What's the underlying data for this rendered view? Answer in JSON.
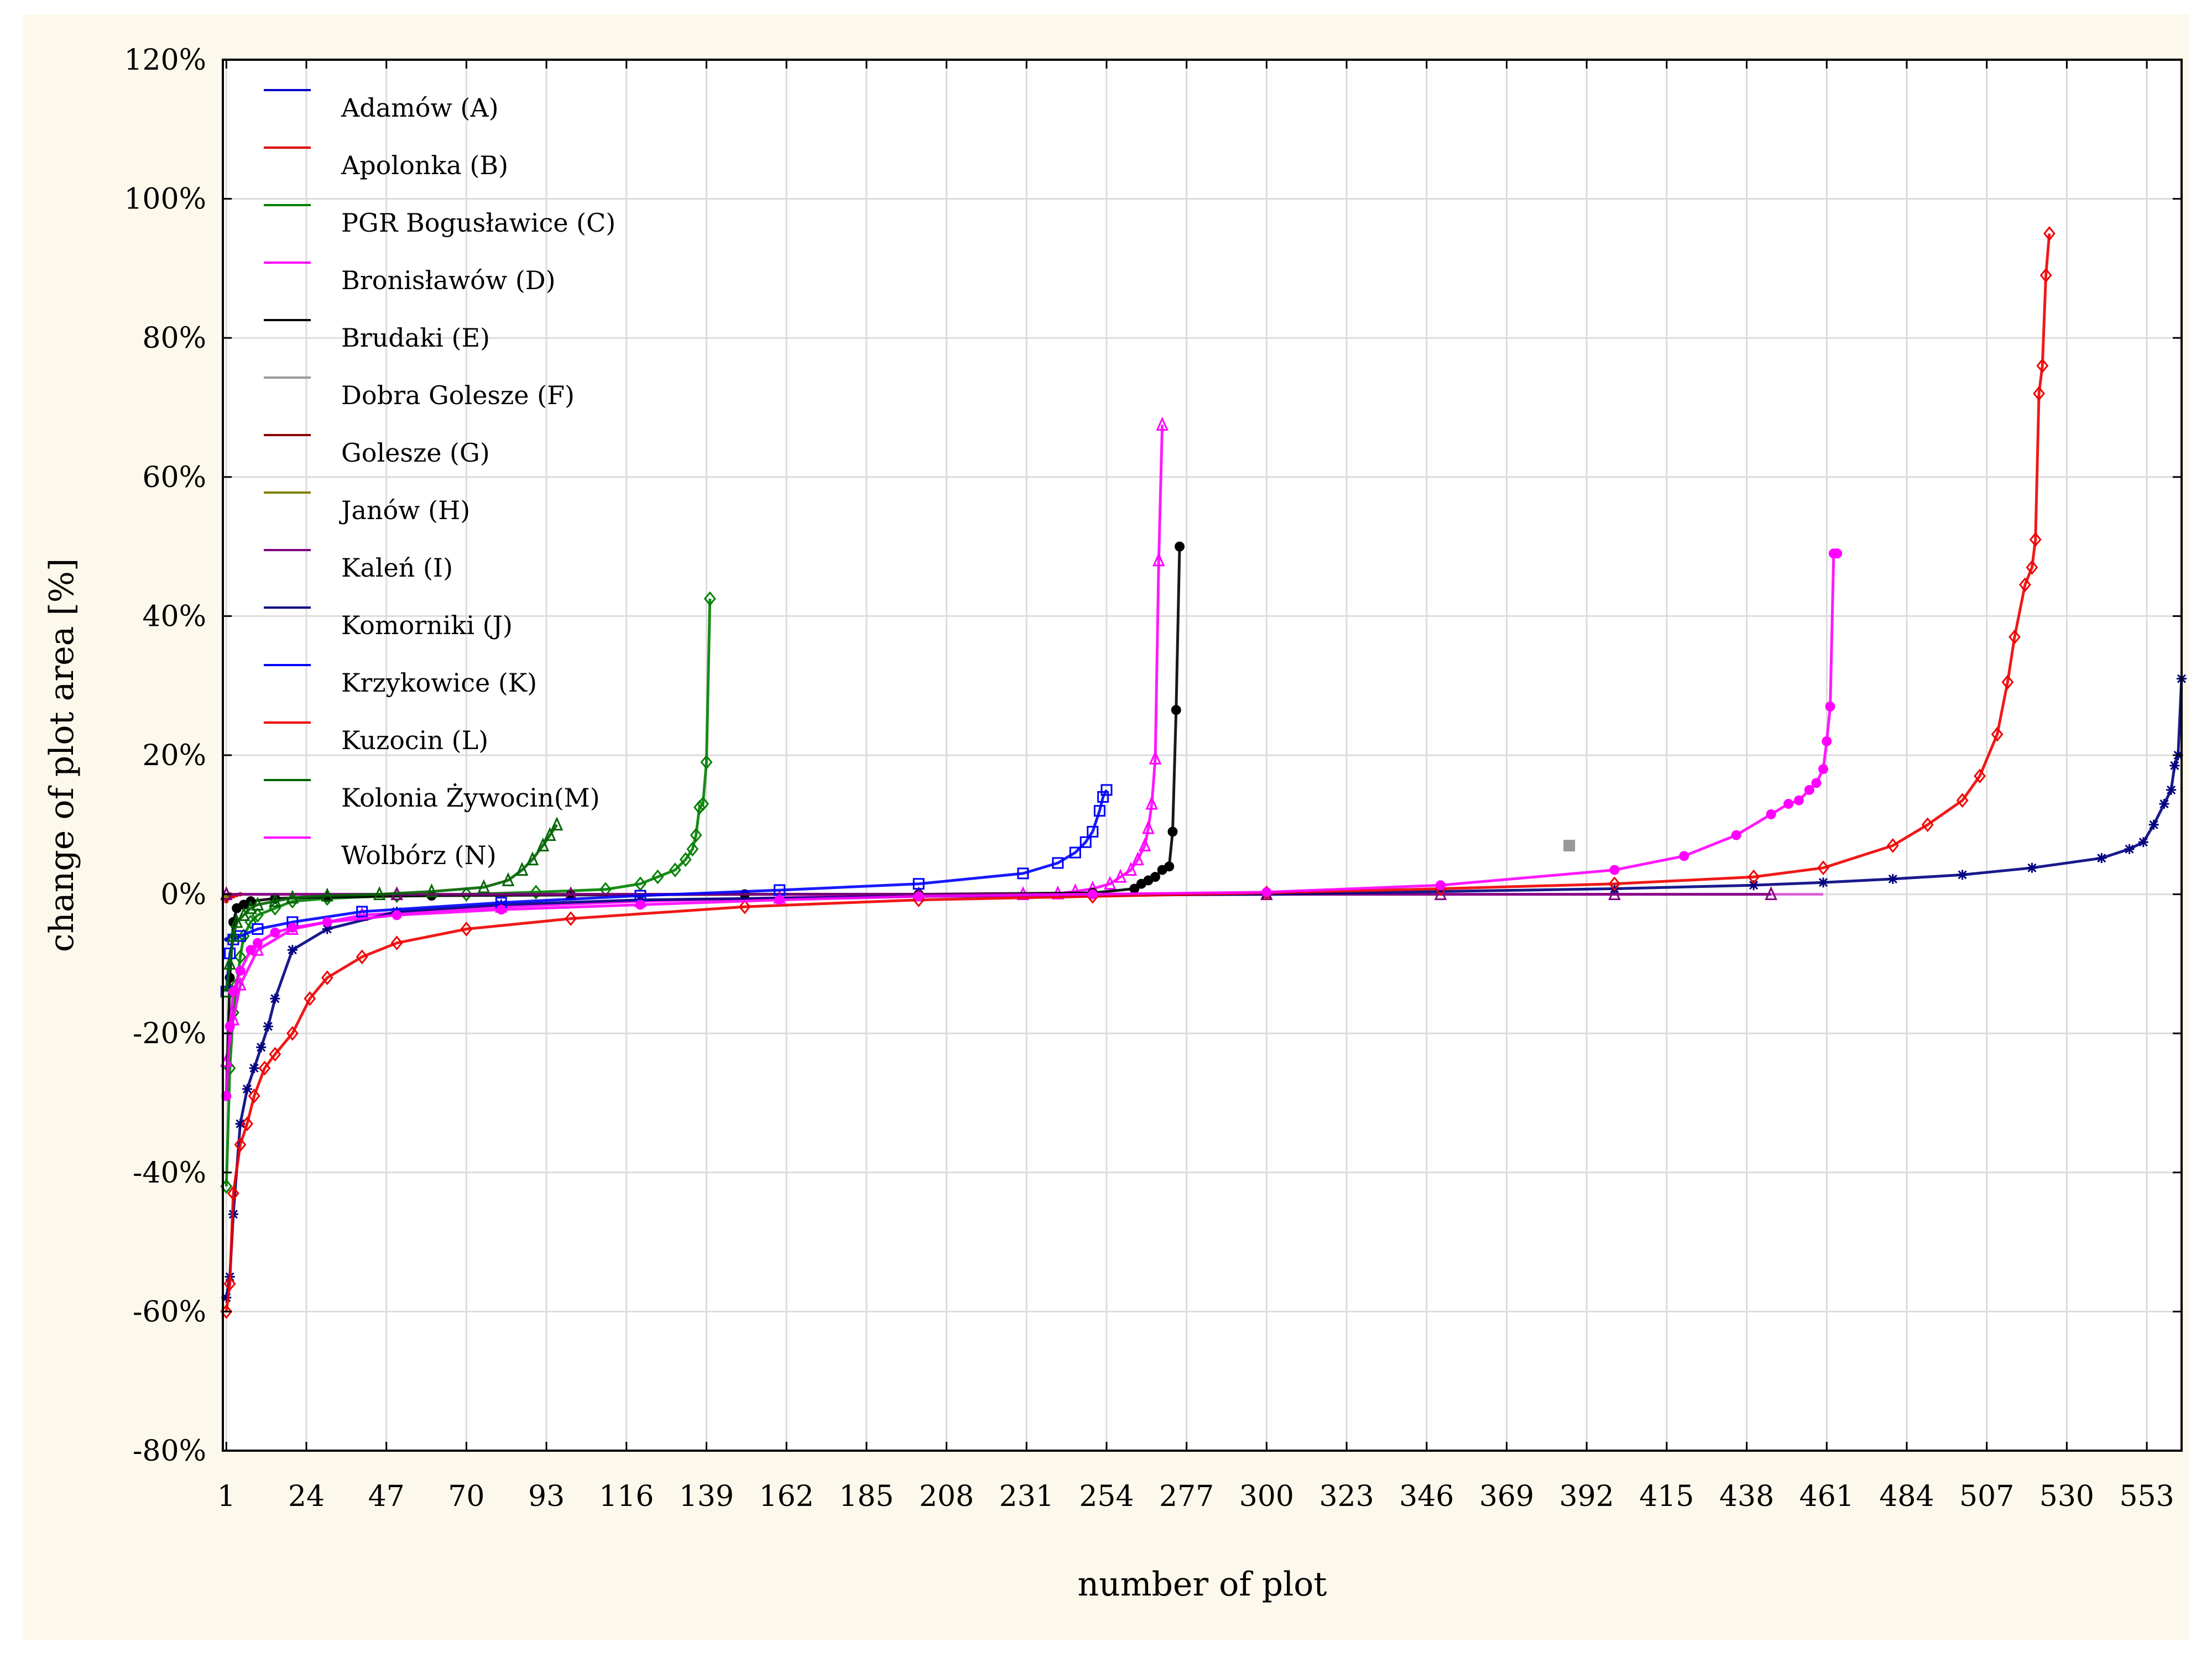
{
  "chart_data": {
    "type": "scatter",
    "title": "",
    "xlabel": "number of plot",
    "ylabel": "change of plot area [%]",
    "xlim": [
      0,
      563
    ],
    "ylim": [
      -80,
      120
    ],
    "x_ticks": [
      1,
      24,
      47,
      70,
      93,
      116,
      139,
      162,
      185,
      208,
      231,
      254,
      277,
      300,
      323,
      346,
      369,
      392,
      415,
      438,
      461,
      484,
      507,
      530,
      553
    ],
    "y_ticks": [
      "-80%",
      "-60%",
      "-40%",
      "-20%",
      "0%",
      "20%",
      "40%",
      "60%",
      "80%",
      "100%",
      "120%"
    ],
    "y_tick_values": [
      -80,
      -60,
      -40,
      -20,
      0,
      20,
      40,
      60,
      80,
      100,
      120
    ],
    "grid": true,
    "legend_position": "top-left",
    "series": [
      {
        "name": "Adamów (A)",
        "color": "#0000cc",
        "marker": "none",
        "x": [
          1,
          2,
          3
        ],
        "y": [
          -6.5,
          -6.0,
          -5.8
        ]
      },
      {
        "name": "Apolonka (B)",
        "color": "#dd0000",
        "marker": "none",
        "x": [
          1,
          2,
          3,
          4,
          5
        ],
        "y": [
          -1.0,
          -0.5,
          -0.3,
          -0.1,
          0
        ]
      },
      {
        "name": "PGR Bogusławice (C)",
        "color": "#008000",
        "marker": "diamond",
        "x": [
          1,
          2,
          3,
          4,
          5,
          6,
          8,
          10,
          15,
          20,
          30,
          50,
          70,
          90,
          110,
          120,
          125,
          130,
          133,
          135,
          136,
          137,
          138,
          139,
          140
        ],
        "y": [
          -42,
          -25,
          -17,
          -13,
          -9,
          -6,
          -4,
          -3,
          -2,
          -1,
          -0.6,
          -0.2,
          0,
          0.3,
          0.7,
          1.5,
          2.5,
          3.5,
          5,
          6.5,
          8.5,
          12.5,
          13,
          19,
          42.5
        ]
      },
      {
        "name": "Bronisławów (D)",
        "color": "#ff00ff",
        "marker": "triangle",
        "x": [
          1,
          3,
          5,
          10,
          20,
          40,
          80,
          120,
          160,
          200,
          230,
          240,
          245,
          250,
          255,
          258,
          261,
          263,
          265,
          266,
          267,
          268,
          269,
          270
        ],
        "y": [
          -24,
          -18,
          -13,
          -8,
          -5,
          -3,
          -1.8,
          -1,
          -0.5,
          -0.2,
          0,
          0.1,
          0.4,
          0.8,
          1.5,
          2.5,
          3.5,
          5,
          7,
          9.5,
          13,
          19.5,
          48,
          67.5
        ]
      },
      {
        "name": "Brudaki (E)",
        "color": "#000000",
        "marker": "circle",
        "x": [
          1,
          2,
          3,
          4,
          6,
          8,
          15,
          30,
          60,
          100,
          150,
          200,
          250,
          262,
          264,
          266,
          268,
          270,
          272,
          273,
          274,
          275
        ],
        "y": [
          -29,
          -12,
          -4,
          -2,
          -1.5,
          -1,
          -0.6,
          -0.4,
          -0.2,
          -0.1,
          0,
          0,
          0.2,
          0.8,
          1.5,
          2,
          2.5,
          3.5,
          4,
          9,
          26.5,
          50
        ]
      },
      {
        "name": "Dobra Golesze (F)",
        "color": "#999999",
        "marker": "square",
        "x": [
          387
        ],
        "y": [
          7
        ]
      },
      {
        "name": "Golesze (G)",
        "color": "#8b0000",
        "marker": "none",
        "x": [
          1,
          2
        ],
        "y": [
          -0.5,
          0
        ]
      },
      {
        "name": "Janów (H)",
        "color": "#808000",
        "marker": "none",
        "x": [
          1,
          2
        ],
        "y": [
          -0.3,
          0
        ]
      },
      {
        "name": "Kaleń (I)",
        "color": "#800080",
        "marker": "triangle",
        "x": [
          1,
          50,
          100,
          200,
          300,
          350,
          400,
          445
        ],
        "y": [
          0,
          0,
          0,
          0,
          0,
          0,
          0,
          0
        ]
      },
      {
        "name": "Komorniki (J)",
        "color": "#000080",
        "marker": "star",
        "x": [
          1,
          2,
          3,
          5,
          7,
          9,
          11,
          13,
          15,
          20,
          30,
          50,
          80,
          120,
          200,
          300,
          400,
          440,
          460,
          480,
          500,
          520,
          540,
          548,
          552,
          555,
          558,
          560,
          561,
          562,
          563
        ],
        "y": [
          -58,
          -55,
          -46,
          -33,
          -28,
          -25,
          -22,
          -19,
          -15,
          -8,
          -5,
          -2.5,
          -1.5,
          -0.8,
          -0.3,
          0,
          0.8,
          1.3,
          1.7,
          2.2,
          2.8,
          3.8,
          5.2,
          6.5,
          7.5,
          10,
          13,
          15,
          18.5,
          20,
          31
        ]
      },
      {
        "name": "Krzykowice (K)",
        "color": "#0000ff",
        "marker": "square",
        "x": [
          1,
          2,
          3,
          5,
          10,
          20,
          40,
          80,
          120,
          160,
          200,
          230,
          240,
          245,
          248,
          250,
          252,
          253,
          254
        ],
        "y": [
          -14,
          -8.5,
          -6.5,
          -6,
          -5,
          -4,
          -2.5,
          -1.2,
          -0.2,
          0.6,
          1.5,
          3,
          4.5,
          6,
          7.5,
          9,
          12,
          14,
          15
        ]
      },
      {
        "name": "Kuzocin (L)",
        "color": "#ee0000",
        "marker": "diamond",
        "x": [
          1,
          2,
          3,
          5,
          7,
          9,
          12,
          15,
          20,
          25,
          30,
          40,
          50,
          70,
          100,
          150,
          200,
          250,
          300,
          350,
          400,
          440,
          460,
          480,
          490,
          500,
          505,
          510,
          513,
          515,
          518,
          520,
          521,
          522,
          523,
          524,
          525
        ],
        "y": [
          -60,
          -56,
          -43,
          -36,
          -33,
          -29,
          -25,
          -23,
          -20,
          -15,
          -12,
          -9,
          -7,
          -5,
          -3.5,
          -1.8,
          -0.8,
          -0.3,
          0.2,
          0.8,
          1.5,
          2.5,
          3.8,
          7,
          10,
          13.5,
          17,
          23,
          30.5,
          37,
          44.5,
          47,
          51,
          72,
          76,
          89,
          95
        ]
      },
      {
        "name": "Kolonia Żywocin(M)",
        "color": "#006400",
        "marker": "triangle",
        "x": [
          1,
          2,
          3,
          4,
          6,
          8,
          10,
          15,
          20,
          30,
          45,
          60,
          75,
          82,
          86,
          89,
          92,
          94,
          96
        ],
        "y": [
          -14,
          -10,
          -6,
          -4,
          -3,
          -2,
          -1.5,
          -1,
          -0.5,
          -0.2,
          0,
          0.4,
          1,
          2,
          3.5,
          5,
          7,
          8.5,
          10
        ]
      },
      {
        "name": "Wolbórz (N)",
        "color": "#ff00ff",
        "marker": "circle",
        "x": [
          1,
          2,
          3,
          5,
          8,
          10,
          15,
          20,
          30,
          50,
          80,
          120,
          160,
          200,
          250,
          300,
          350,
          400,
          420,
          435,
          445,
          450,
          453,
          456,
          458,
          460,
          461,
          462,
          463,
          464
        ],
        "y": [
          -29,
          -19,
          -14,
          -11,
          -8,
          -7,
          -5.5,
          -4.8,
          -4,
          -3,
          -2.2,
          -1.5,
          -0.8,
          -0.3,
          0,
          0.3,
          1.3,
          3.5,
          5.5,
          8.5,
          11.5,
          13,
          13.5,
          15,
          16,
          18,
          22,
          27,
          49,
          49
        ]
      }
    ]
  }
}
